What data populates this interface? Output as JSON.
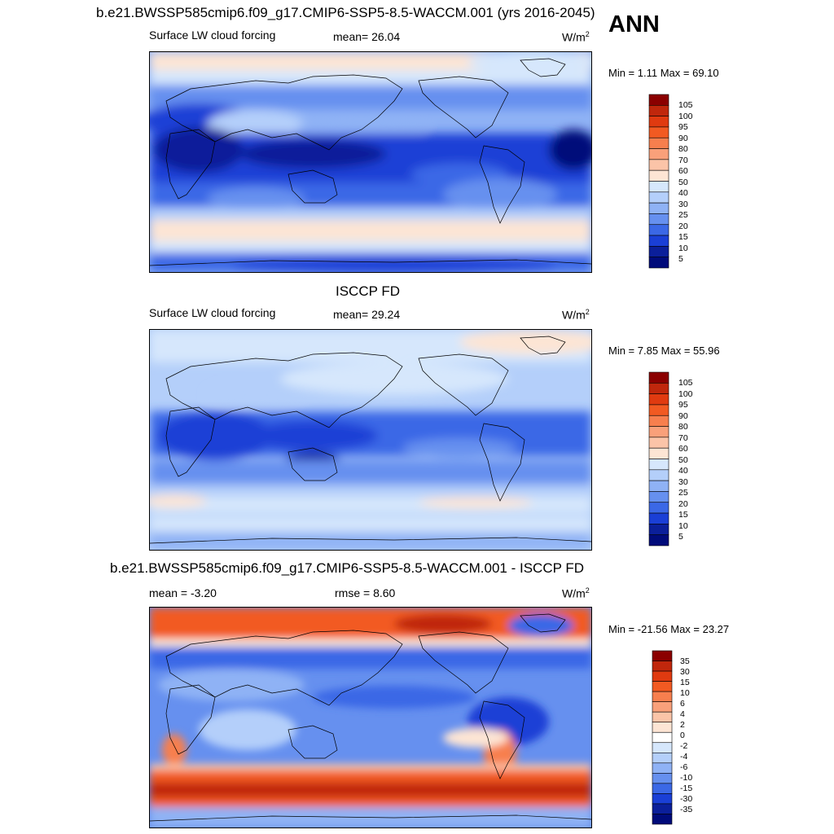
{
  "season": "ANN",
  "panels": [
    {
      "title": "b.e21.BWSSP585cmip6.f09_g17.CMIP6-SSP5-8.5-WACCM.001 (yrs 2016-2045)",
      "left_label": "Surface LW cloud forcing",
      "center_label": "mean=  26.04",
      "units": "W/m",
      "units_sup": "2",
      "minmax": "Min =   1.11 Max =  69.10",
      "levels": [
        "105",
        "100",
        "95",
        "90",
        "80",
        "70",
        "60",
        "50",
        "40",
        "30",
        "25",
        "20",
        "15",
        "10",
        "5"
      ]
    },
    {
      "title": "ISCCP FD",
      "left_label": "Surface LW cloud forcing",
      "center_label": "mean=  29.24",
      "units": "W/m",
      "units_sup": "2",
      "minmax": "Min =   7.85 Max =  55.96",
      "levels": [
        "105",
        "100",
        "95",
        "90",
        "80",
        "70",
        "60",
        "50",
        "40",
        "30",
        "25",
        "20",
        "15",
        "10",
        "5"
      ]
    },
    {
      "title": "b.e21.BWSSP585cmip6.f09_g17.CMIP6-SSP5-8.5-WACCM.001 - ISCCP FD",
      "left_label": "mean =  -3.20",
      "center_label": "rmse =   8.60",
      "units": "W/m",
      "units_sup": "2",
      "minmax": "Min = -21.56 Max =  23.27",
      "levels": [
        "35",
        "30",
        "15",
        "10",
        "6",
        "4",
        "2",
        "0",
        "-2",
        "-4",
        "-6",
        "-10",
        "-15",
        "-30",
        "-35"
      ]
    }
  ],
  "colors": {
    "abs_scale": [
      "#8b0000",
      "#c0270c",
      "#e03a10",
      "#f25a22",
      "#f77f4e",
      "#f9a07a",
      "#fbc4a8",
      "#fde5d4",
      "#d6e7fc",
      "#b4cffa",
      "#8fb2f5",
      "#6690ef",
      "#3b68e6",
      "#1a3fd6",
      "#0b1f9a",
      "#000b7a"
    ],
    "diff_scale": [
      "#8b0000",
      "#c0270c",
      "#e03a10",
      "#f25a22",
      "#f77f4e",
      "#f9a07a",
      "#fbc4a8",
      "#fde5d4",
      "#ffffff",
      "#d6e7fc",
      "#b4cffa",
      "#8fb2f5",
      "#6690ef",
      "#3b68e6",
      "#1a3fd6",
      "#0b1f9a",
      "#000b7a"
    ]
  }
}
